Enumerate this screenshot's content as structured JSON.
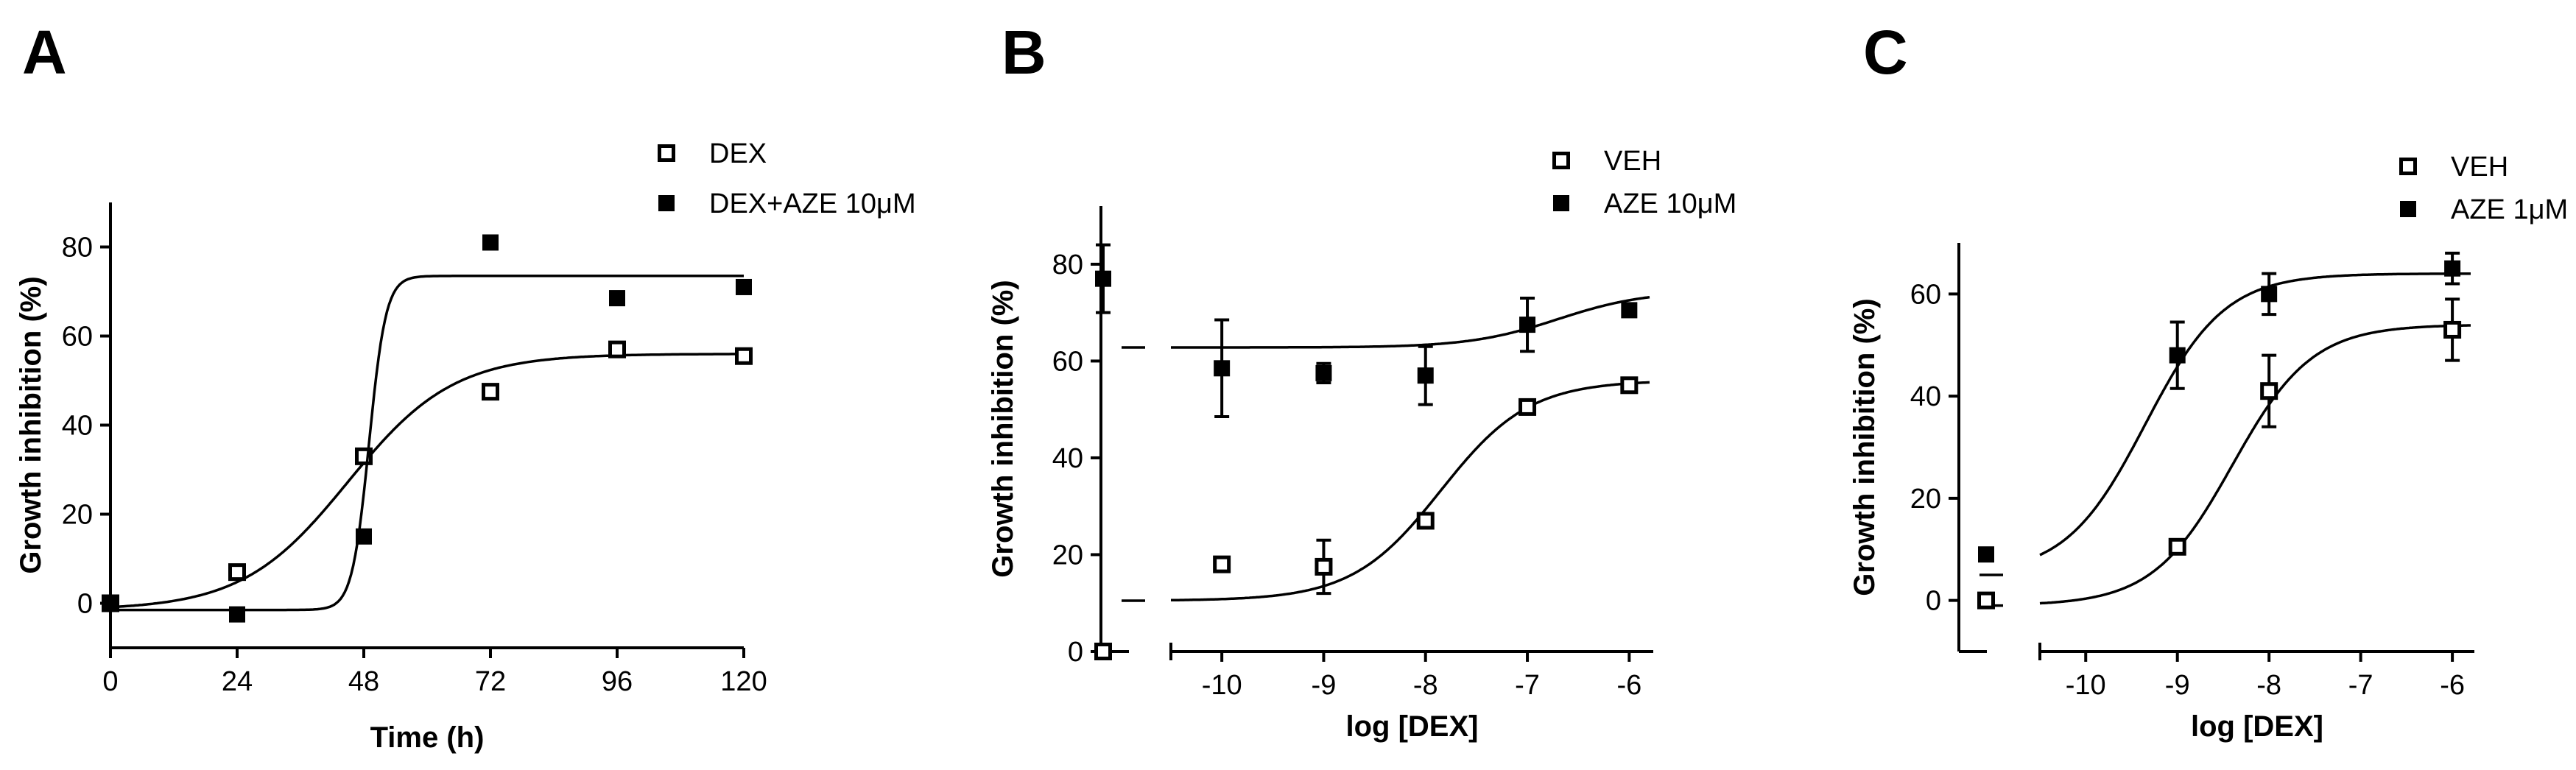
{
  "chart_data": [
    {
      "panel": "A",
      "type": "scatter",
      "xlabel": "Time (h)",
      "ylabel": "Growth inhibition (%)",
      "xlim": [
        0,
        120
      ],
      "ylim": [
        -10,
        90
      ],
      "xticks": [
        0,
        24,
        48,
        72,
        96,
        120
      ],
      "yticks": [
        0,
        20,
        40,
        60,
        80
      ],
      "legend_position": "top-right",
      "series": [
        {
          "name": "DEX",
          "marker": "open-square",
          "x": [
            0,
            24,
            48,
            72,
            96,
            120
          ],
          "y": [
            0,
            7,
            33,
            47.5,
            57,
            55.5
          ],
          "fit": {
            "model": "sigmoid",
            "bottom": -1.5,
            "top": 56,
            "x50": 45,
            "width": 10
          }
        },
        {
          "name": "DEX+AZE 10μM",
          "marker": "filled-square",
          "x": [
            0,
            24,
            48,
            72,
            96,
            120
          ],
          "y": [
            0,
            -2.5,
            15,
            81,
            68.5,
            71
          ],
          "fit": {
            "model": "sigmoid",
            "bottom": -1.5,
            "top": 73.5,
            "x50": 49,
            "width": 1.6
          }
        }
      ]
    },
    {
      "panel": "B",
      "type": "scatter",
      "xlabel": "log [DEX]",
      "ylabel": "Growth inhibition (%)",
      "xlim": [
        -10.5,
        -5.8
      ],
      "ylim": [
        0,
        92
      ],
      "xticks": [
        -10,
        -9,
        -8,
        -7,
        -6
      ],
      "yticks": [
        0,
        20,
        40,
        60,
        80
      ],
      "x_break": true,
      "legend_position": "top-right",
      "series": [
        {
          "name": "VEH",
          "marker": "open-square",
          "control_y": 0,
          "x": [
            -10,
            -9,
            -8,
            -7,
            -6
          ],
          "y": [
            18,
            17.5,
            27,
            50.5,
            55
          ],
          "err": [
            0,
            5.5,
            0,
            0,
            0
          ],
          "fit": {
            "model": "hill",
            "bottom": 10.5,
            "top": 56,
            "logEC50": -7.85,
            "hill": 1.0
          }
        },
        {
          "name": "AZE 10μM",
          "marker": "filled-square",
          "control_y": 77,
          "control_err": 7,
          "x": [
            -10,
            -9,
            -8,
            -7,
            -6
          ],
          "y": [
            58.5,
            57.5,
            57,
            67.5,
            70.5
          ],
          "err": [
            10,
            2,
            6,
            5.5,
            1
          ],
          "fit": {
            "model": "hill",
            "bottom": 62.8,
            "top": 74.5,
            "logEC50": -6.7,
            "hill": 1.0
          }
        }
      ]
    },
    {
      "panel": "C",
      "type": "scatter",
      "xlabel": "log [DEX]",
      "ylabel": "Growth inhibition (%)",
      "xlim": [
        -10.5,
        -5.8
      ],
      "ylim": [
        -10,
        70
      ],
      "xticks": [
        -10,
        -9,
        -8,
        -7,
        -6
      ],
      "yticks": [
        0,
        20,
        40,
        60
      ],
      "x_break": true,
      "legend_position": "top-right",
      "series": [
        {
          "name": "VEH",
          "marker": "open-square",
          "control_y": 0,
          "x": [
            -9,
            -8,
            -6
          ],
          "y": [
            10.5,
            41,
            53
          ],
          "err": [
            0,
            7,
            6
          ],
          "fit": {
            "model": "hill",
            "bottom": -1,
            "top": 54,
            "logEC50": -8.4,
            "hill": 1.0
          }
        },
        {
          "name": "AZE 1μM",
          "marker": "filled-square",
          "control_y": 9,
          "x": [
            -9,
            -8,
            -6
          ],
          "y": [
            48,
            60,
            65
          ],
          "err": [
            6.5,
            4,
            3
          ],
          "fit": {
            "model": "hill",
            "bottom": 5,
            "top": 64,
            "logEC50": -9.35,
            "hill": 1.0
          }
        }
      ]
    }
  ]
}
